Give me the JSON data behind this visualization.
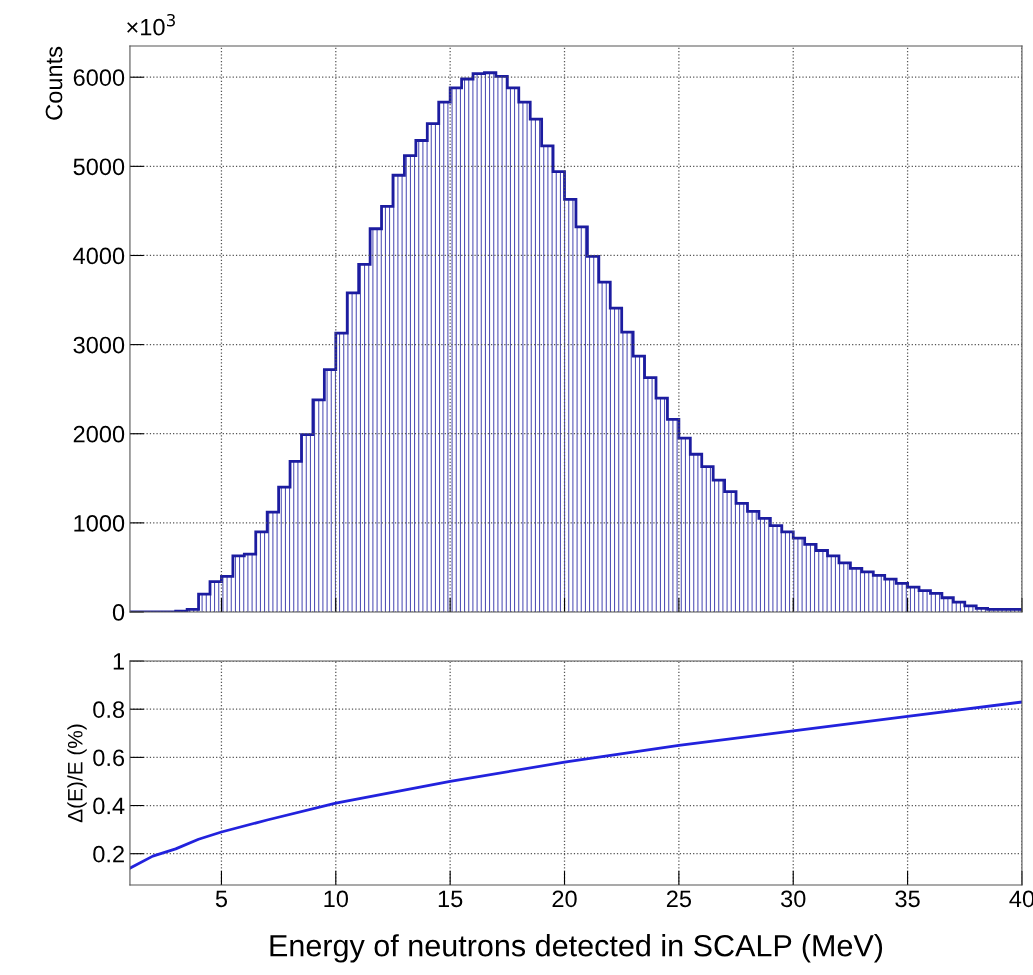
{
  "chart_data": [
    {
      "type": "histogram",
      "ylabel": "Counts",
      "annotations": [
        "×10$^{3}$"
      ],
      "bins": [
        1,
        1.5,
        2,
        2.5,
        3,
        3.5,
        4,
        4.5,
        5,
        5.5,
        6,
        6.5,
        7,
        7.5,
        8,
        8.5,
        9,
        9.5,
        10,
        10.5,
        11,
        11.5,
        12,
        12.5,
        13,
        13.5,
        14,
        14.5,
        15,
        15.5,
        16,
        16.5,
        17,
        17.5,
        18,
        18.5,
        19,
        19.5,
        20,
        20.5,
        21,
        21.5,
        22,
        22.5,
        23,
        23.5,
        24,
        24.5,
        25,
        25.5,
        26,
        26.5,
        27,
        27.5,
        28,
        28.5,
        29,
        29.5,
        30,
        30.5,
        31,
        31.5,
        32,
        32.5,
        33,
        33.5,
        34,
        34.5,
        35,
        35.5,
        36,
        36.5,
        37,
        37.5,
        38,
        38.5,
        39,
        39.5,
        40
      ],
      "series": [
        {
          "color": "#1c1ca0",
          "values": [
            0,
            0,
            0,
            0,
            10,
            30,
            200,
            340,
            400,
            630,
            650,
            900,
            1120,
            1400,
            1690,
            1990,
            2380,
            2720,
            3130,
            3580,
            3900,
            4300,
            4550,
            4900,
            5120,
            5290,
            5480,
            5720,
            5880,
            5980,
            6040,
            6050,
            6010,
            5880,
            5720,
            5530,
            5230,
            4940,
            4630,
            4320,
            3990,
            3700,
            3410,
            3140,
            2870,
            2630,
            2400,
            2160,
            1950,
            1770,
            1630,
            1480,
            1350,
            1220,
            1130,
            1050,
            970,
            900,
            830,
            760,
            690,
            630,
            550,
            490,
            450,
            410,
            370,
            320,
            280,
            240,
            210,
            160,
            110,
            70,
            40,
            30,
            30,
            30
          ]
        }
      ],
      "xlim": [
        1,
        40
      ],
      "xticks": [
        5,
        10,
        15,
        20,
        25,
        30,
        35,
        40
      ],
      "ylim": [
        0,
        6350
      ],
      "yticks": [
        0,
        1000,
        2000,
        3000,
        4000,
        5000,
        6000
      ],
      "tick_labels": "y",
      "grid": true,
      "legend": false
    },
    {
      "type": "line",
      "ylabel": "Δ(E)/E (%)",
      "xlabel": "Energy of neutrons detected in SCALP (MeV)",
      "x": [
        1,
        2,
        3,
        4,
        5,
        7,
        10,
        15,
        20,
        25,
        30,
        35,
        40
      ],
      "series": [
        {
          "color": "#2222dd",
          "values": [
            0.14,
            0.19,
            0.22,
            0.26,
            0.29,
            0.34,
            0.41,
            0.5,
            0.58,
            0.65,
            0.71,
            0.77,
            0.83
          ]
        }
      ],
      "xlim": [
        1,
        40
      ],
      "xticks": [
        5,
        10,
        15,
        20,
        25,
        30,
        35,
        40
      ],
      "ylim": [
        0.07,
        1
      ],
      "yticks": [
        0.2,
        0.4,
        0.6,
        0.8,
        1
      ],
      "grid": true,
      "legend": false,
      "marker": "none",
      "line_style": "solid"
    }
  ]
}
